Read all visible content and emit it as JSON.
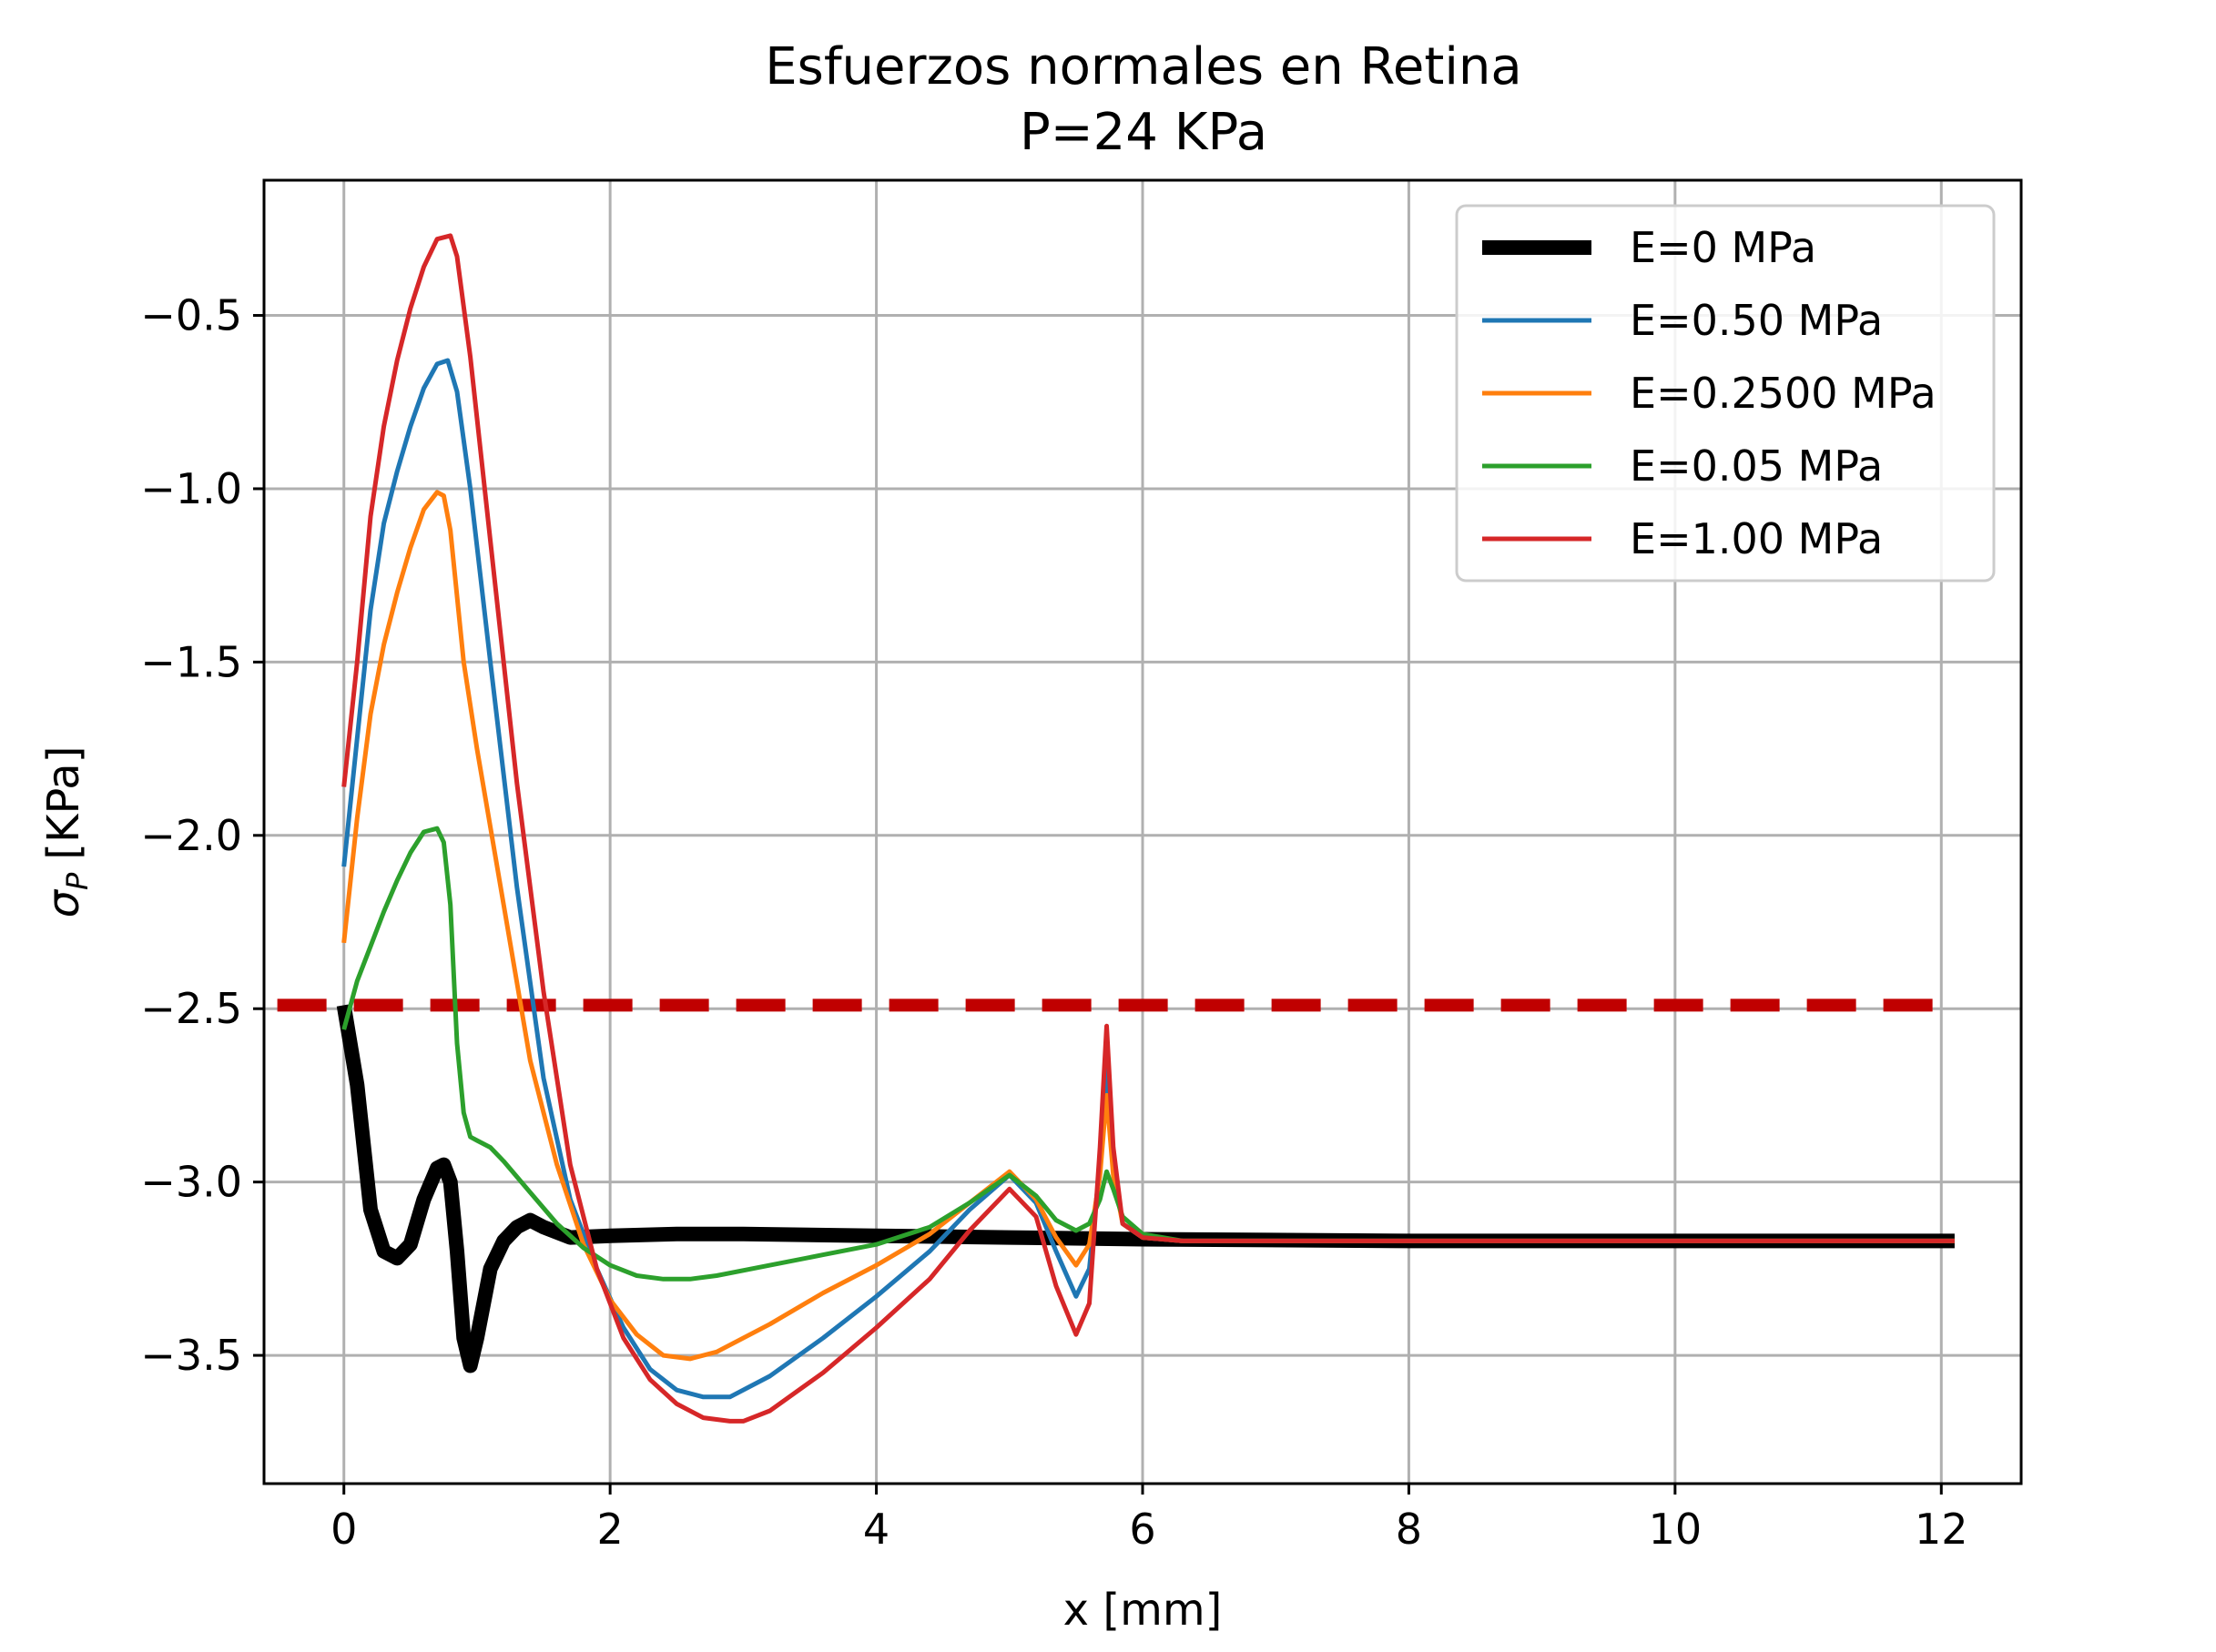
{
  "chart_data": {
    "type": "line",
    "title": "Esfuerzos normales en Retina",
    "subtitle": "P=24 KPa",
    "xlabel": "x [mm]",
    "ylabel_main": "σ",
    "ylabel_sub": "P",
    "ylabel_unit": "[KPa]",
    "xlim": [
      -0.6,
      12.6
    ],
    "ylim": [
      -3.87,
      -0.11
    ],
    "grid": true,
    "legend_position": "top-right",
    "xticks": [
      0,
      2,
      4,
      6,
      8,
      10,
      12
    ],
    "xtick_labels": [
      "0",
      "2",
      "4",
      "6",
      "8",
      "10",
      "12"
    ],
    "yticks": [
      -0.5,
      -1.0,
      -1.5,
      -2.0,
      -2.5,
      -3.0,
      -3.5
    ],
    "ytick_labels": [
      "−0.5",
      "−1.0",
      "−1.5",
      "−2.0",
      "−2.5",
      "−3.0",
      "−3.5"
    ],
    "reference_line": {
      "y": -2.49,
      "x_range": [
        -0.5,
        12.1
      ],
      "color": "#c00000",
      "style": "dashed"
    },
    "series": [
      {
        "name": "E=0 MPa",
        "color": "#000000",
        "thick": true,
        "x": [
          0,
          0.1,
          0.2,
          0.3,
          0.4,
          0.5,
          0.6,
          0.7,
          0.75,
          0.8,
          0.85,
          0.9,
          0.95,
          1.0,
          1.1,
          1.2,
          1.3,
          1.4,
          1.5,
          1.7,
          2.0,
          2.5,
          3.0,
          4.0,
          5.0,
          6.0,
          8.0,
          10.0,
          12.1
        ],
        "y": [
          -2.49,
          -2.72,
          -3.08,
          -3.2,
          -3.22,
          -3.18,
          -3.05,
          -2.96,
          -2.95,
          -3.0,
          -3.2,
          -3.45,
          -3.53,
          -3.45,
          -3.25,
          -3.17,
          -3.13,
          -3.11,
          -3.13,
          -3.16,
          -3.155,
          -3.15,
          -3.15,
          -3.155,
          -3.16,
          -3.165,
          -3.17,
          -3.17,
          -3.17
        ]
      },
      {
        "name": "E=0.50 MPa",
        "color": "#1f77b4",
        "thick": false,
        "x": [
          0,
          0.1,
          0.2,
          0.3,
          0.4,
          0.5,
          0.6,
          0.7,
          0.78,
          0.85,
          0.95,
          1.1,
          1.3,
          1.5,
          1.7,
          1.9,
          2.1,
          2.3,
          2.5,
          2.7,
          2.9,
          3.2,
          3.6,
          4.0,
          4.4,
          4.7,
          5.0,
          5.2,
          5.35,
          5.5,
          5.6,
          5.68,
          5.73,
          5.78,
          5.85,
          6.0,
          6.3,
          7.0,
          12.1
        ],
        "y": [
          -2.09,
          -1.72,
          -1.35,
          -1.1,
          -0.95,
          -0.82,
          -0.71,
          -0.64,
          -0.63,
          -0.72,
          -1.0,
          -1.5,
          -2.15,
          -2.7,
          -3.05,
          -3.25,
          -3.42,
          -3.54,
          -3.6,
          -3.62,
          -3.62,
          -3.56,
          -3.45,
          -3.33,
          -3.2,
          -3.08,
          -2.98,
          -3.06,
          -3.2,
          -3.33,
          -3.25,
          -2.95,
          -2.65,
          -2.95,
          -3.12,
          -3.16,
          -3.17,
          -3.17,
          -3.17
        ]
      },
      {
        "name": "E=0.2500 MPa",
        "color": "#ff7f0e",
        "thick": false,
        "x": [
          0,
          0.1,
          0.2,
          0.3,
          0.4,
          0.5,
          0.6,
          0.7,
          0.75,
          0.8,
          0.9,
          1.0,
          1.2,
          1.4,
          1.6,
          1.8,
          2.0,
          2.2,
          2.4,
          2.6,
          2.8,
          3.2,
          3.6,
          4.0,
          4.4,
          4.7,
          5.0,
          5.2,
          5.35,
          5.5,
          5.6,
          5.68,
          5.73,
          5.78,
          5.85,
          6.0,
          6.3,
          7.0,
          12.1
        ],
        "y": [
          -2.31,
          -1.95,
          -1.65,
          -1.45,
          -1.3,
          -1.17,
          -1.06,
          -1.01,
          -1.02,
          -1.12,
          -1.5,
          -1.75,
          -2.2,
          -2.65,
          -2.95,
          -3.18,
          -3.34,
          -3.44,
          -3.5,
          -3.51,
          -3.49,
          -3.41,
          -3.32,
          -3.24,
          -3.15,
          -3.06,
          -2.97,
          -3.05,
          -3.16,
          -3.24,
          -3.18,
          -2.98,
          -2.75,
          -2.98,
          -3.12,
          -3.16,
          -3.17,
          -3.17,
          -3.17
        ]
      },
      {
        "name": "E=0.05 MPa",
        "color": "#2ca02c",
        "thick": false,
        "x": [
          0,
          0.1,
          0.2,
          0.3,
          0.4,
          0.5,
          0.6,
          0.7,
          0.75,
          0.8,
          0.85,
          0.9,
          0.95,
          1.0,
          1.1,
          1.2,
          1.4,
          1.6,
          1.8,
          2.0,
          2.2,
          2.4,
          2.6,
          2.8,
          3.2,
          3.6,
          4.0,
          4.4,
          4.7,
          5.0,
          5.2,
          5.35,
          5.5,
          5.6,
          5.68,
          5.73,
          5.78,
          5.85,
          6.0,
          6.3,
          7.0,
          12.1
        ],
        "y": [
          -2.56,
          -2.42,
          -2.32,
          -2.22,
          -2.13,
          -2.05,
          -1.99,
          -1.98,
          -2.02,
          -2.2,
          -2.6,
          -2.8,
          -2.87,
          -2.88,
          -2.9,
          -2.94,
          -3.03,
          -3.12,
          -3.19,
          -3.24,
          -3.27,
          -3.28,
          -3.28,
          -3.27,
          -3.24,
          -3.21,
          -3.18,
          -3.13,
          -3.06,
          -2.98,
          -3.04,
          -3.11,
          -3.14,
          -3.12,
          -3.05,
          -2.97,
          -3.02,
          -3.1,
          -3.15,
          -3.17,
          -3.17,
          -3.17
        ]
      },
      {
        "name": "E=1.00 MPa",
        "color": "#d62728",
        "thick": false,
        "x": [
          0,
          0.1,
          0.2,
          0.3,
          0.4,
          0.5,
          0.6,
          0.7,
          0.8,
          0.85,
          0.95,
          1.1,
          1.3,
          1.5,
          1.7,
          1.9,
          2.1,
          2.3,
          2.5,
          2.7,
          2.9,
          3.0,
          3.2,
          3.6,
          4.0,
          4.4,
          4.7,
          5.0,
          5.2,
          5.35,
          5.5,
          5.6,
          5.68,
          5.73,
          5.78,
          5.85,
          6.0,
          6.3,
          7.0,
          12.1
        ],
        "y": [
          -1.86,
          -1.5,
          -1.08,
          -0.82,
          -0.63,
          -0.48,
          -0.36,
          -0.28,
          -0.27,
          -0.33,
          -0.62,
          -1.15,
          -1.85,
          -2.45,
          -2.95,
          -3.25,
          -3.45,
          -3.57,
          -3.64,
          -3.68,
          -3.69,
          -3.69,
          -3.66,
          -3.55,
          -3.42,
          -3.28,
          -3.14,
          -3.02,
          -3.1,
          -3.3,
          -3.44,
          -3.35,
          -2.9,
          -2.55,
          -2.9,
          -3.12,
          -3.16,
          -3.17,
          -3.17,
          -3.17
        ]
      }
    ]
  }
}
